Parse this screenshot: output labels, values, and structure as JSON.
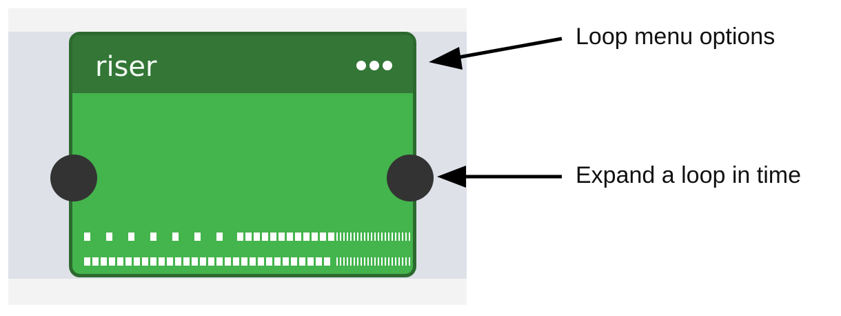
{
  "loop": {
    "name": "riser",
    "menu_icon": "more-horizontal-icon",
    "colors": {
      "body": "#44b44d",
      "header": "#337636",
      "border": "#2d6a2f",
      "handle": "#333333"
    }
  },
  "annotations": {
    "menu_options": "Loop menu options",
    "expand": "Expand a loop in time"
  }
}
